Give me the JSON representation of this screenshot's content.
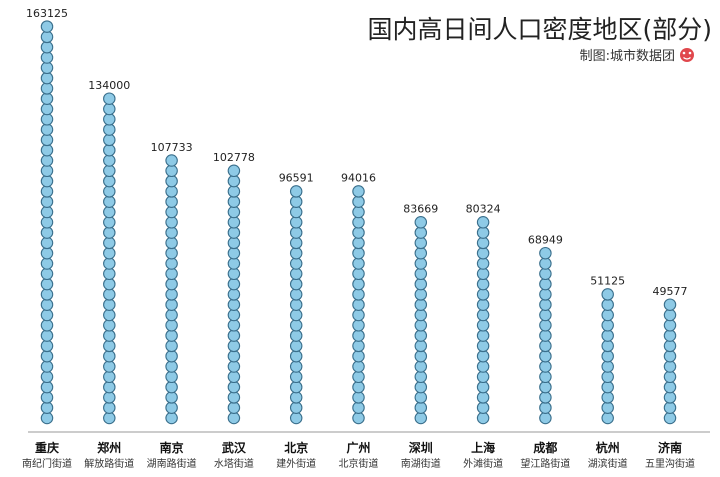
{
  "chart_data": {
    "type": "bar",
    "title": "国内高日间人口密度地区(部分)",
    "credit": "制图:城市数据团",
    "categories": [
      "重庆",
      "郑州",
      "南京",
      "武汉",
      "北京",
      "广州",
      "深圳",
      "上海",
      "成都",
      "杭州",
      "济南"
    ],
    "districts": [
      "南纪门街道",
      "解放路街道",
      "湖南路街道",
      "水塔街道",
      "建外街道",
      "北京街道",
      "南湖街道",
      "外滩街道",
      "望江路街道",
      "湖滨街道",
      "五里沟街道"
    ],
    "values": [
      163125,
      134000,
      107733,
      102778,
      96591,
      94016,
      83669,
      80324,
      68949,
      51125,
      49577
    ],
    "value_labels": [
      "163125",
      "134000",
      "107733",
      "102778",
      "96591",
      "94016",
      "83669",
      "80324",
      "68949",
      "51125",
      "49577"
    ],
    "xlabel": "",
    "ylabel": "",
    "ylim": [
      0,
      163125
    ],
    "grid": false,
    "colors": {
      "marker_fill": "#8ecae6",
      "marker_stroke": "#3a6f8c",
      "axis": "#999999",
      "logo": "#e0474c"
    }
  }
}
